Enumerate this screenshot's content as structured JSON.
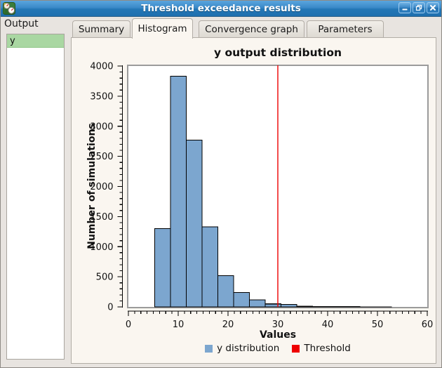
{
  "window": {
    "title": "Threshold exceedance results",
    "icons": {
      "app": "gauges-icon",
      "minimize": "minimize-icon",
      "restore": "restore-icon",
      "close": "close-icon"
    }
  },
  "sidebar": {
    "header": "Output",
    "items": [
      {
        "label": "y",
        "selected": true
      }
    ]
  },
  "tabs": [
    {
      "label": "Summary",
      "active": false
    },
    {
      "label": "Histogram",
      "active": true
    },
    {
      "label": "Convergence graph",
      "active": false
    },
    {
      "label": "Parameters",
      "active": false
    }
  ],
  "chart_data": {
    "type": "bar",
    "title": "y output distribution",
    "xlabel": "Values",
    "ylabel": "Number of simulations",
    "xlim": [
      0,
      60
    ],
    "ylim": [
      0,
      4000
    ],
    "x_major_ticks": [
      0,
      10,
      20,
      30,
      40,
      50,
      60
    ],
    "y_major_ticks": [
      0,
      500,
      1000,
      1500,
      2000,
      2500,
      3000,
      3500,
      4000
    ],
    "x_major_step": 10,
    "x_minor_step": 1.25,
    "y_major_step": 500,
    "y_minor_step": 100,
    "grid": false,
    "bin_start": 5.3,
    "bin_width": 3.1667,
    "values": [
      1300,
      3830,
      2770,
      1330,
      520,
      240,
      115,
      50,
      40,
      12,
      6,
      4,
      3,
      2,
      1
    ],
    "bar_color": "#7CA6CF",
    "bar_edge_color": "#000000",
    "threshold": {
      "value": 30,
      "color": "#EE0000",
      "label": "Threshold"
    },
    "legend": [
      {
        "label": "y distribution",
        "color": "#7CA6CF"
      },
      {
        "label": "Threshold",
        "color": "#EE0000"
      }
    ],
    "legend_position": "bottom",
    "frame_color": "#9B9B9B",
    "axis_color": "#000000"
  }
}
